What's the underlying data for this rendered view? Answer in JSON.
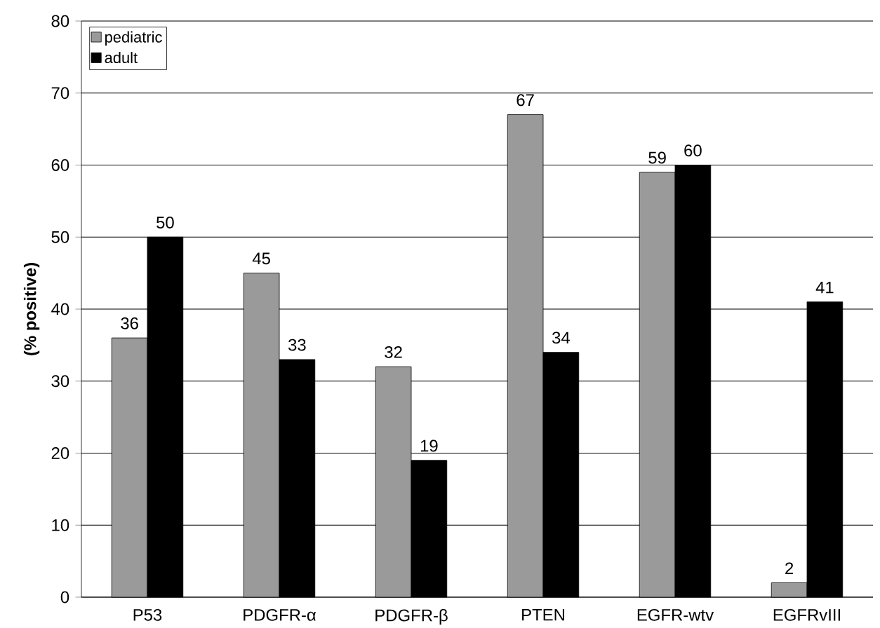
{
  "chart_data": {
    "type": "bar",
    "ylabel": "(% positive)",
    "categories": [
      "P53",
      "PDGFR-α",
      "PDGFR-β",
      "PTEN",
      "EGFR-wtv",
      "EGFRvIII"
    ],
    "series": [
      {
        "name": "pediatric",
        "color": "#9a9a9a",
        "values": [
          36,
          45,
          32,
          67,
          59,
          2
        ]
      },
      {
        "name": "adult",
        "color": "#000000",
        "values": [
          50,
          33,
          19,
          34,
          60,
          41
        ]
      }
    ],
    "ylim": [
      0,
      80
    ],
    "yticks": [
      0,
      10,
      20,
      30,
      40,
      50,
      60,
      70,
      80
    ],
    "grid": "y",
    "legend": "top left",
    "data_labels": true
  }
}
